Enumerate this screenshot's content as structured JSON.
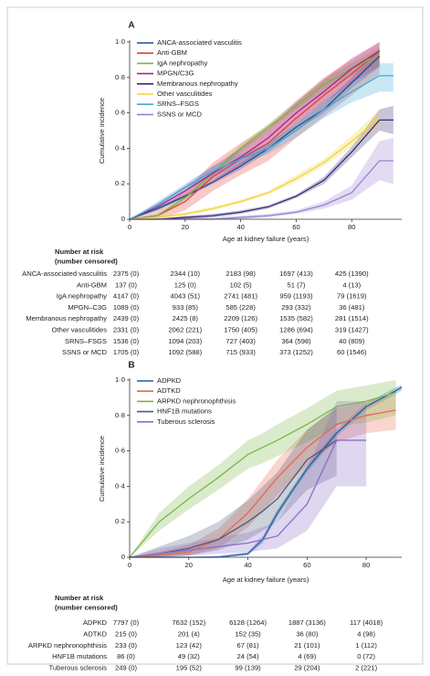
{
  "chart_data": [
    {
      "type": "line",
      "label": "A",
      "ylabel": "Cumulative incidence",
      "xlabel": "Age at kidney failure (years)",
      "x": [
        0,
        10,
        20,
        30,
        40,
        50,
        60,
        70,
        80,
        90,
        95
      ],
      "xlim": [
        0,
        98
      ],
      "xticks": [
        0,
        20,
        40,
        60,
        80
      ],
      "ylim": [
        0,
        1
      ],
      "yticks": [
        0,
        {
          "value": 0.2,
          "label": "0·2"
        },
        {
          "value": 0.4,
          "label": "0·4"
        },
        {
          "value": 0.6,
          "label": "0·6"
        },
        {
          "value": 0.8,
          "label": "0·8"
        },
        {
          "value": 1,
          "label": "1·0"
        }
      ],
      "legend": "upper left",
      "series": [
        {
          "name": "ANCA-associated vasculitis",
          "color": "#1a4f9c",
          "values": [
            0,
            0.06,
            0.13,
            0.21,
            0.3,
            0.4,
            0.52,
            0.62,
            0.77,
            0.92,
            null
          ],
          "lower": [
            0,
            0.05,
            0.12,
            0.2,
            0.28,
            0.38,
            0.5,
            0.6,
            0.74,
            0.86,
            null
          ],
          "upper": [
            0,
            0.07,
            0.14,
            0.22,
            0.32,
            0.42,
            0.54,
            0.65,
            0.8,
            0.96,
            null
          ]
        },
        {
          "name": "Anti-GBM",
          "color": "#e0403a",
          "values": [
            0,
            0.02,
            0.1,
            0.24,
            0.34,
            0.43,
            0.57,
            0.7,
            0.82,
            0.95,
            null
          ],
          "lower": [
            0,
            0,
            0.05,
            0.16,
            0.25,
            0.33,
            0.46,
            0.58,
            0.7,
            0.82,
            null
          ],
          "upper": [
            0,
            0.05,
            0.16,
            0.32,
            0.43,
            0.53,
            0.67,
            0.8,
            0.9,
            1,
            null
          ]
        },
        {
          "name": "IgA nephropathy",
          "color": "#7bb342",
          "values": [
            0,
            0.02,
            0.12,
            0.26,
            0.4,
            0.52,
            0.64,
            0.76,
            0.85,
            0.93,
            null
          ],
          "lower": [
            0,
            0.01,
            0.11,
            0.25,
            0.38,
            0.5,
            0.62,
            0.73,
            0.81,
            0.87,
            null
          ],
          "upper": [
            0,
            0.03,
            0.13,
            0.27,
            0.42,
            0.54,
            0.66,
            0.79,
            0.88,
            0.97,
            null
          ]
        },
        {
          "name": "MPGN/C3G",
          "color": "#a0278f",
          "values": [
            0,
            0.07,
            0.16,
            0.26,
            0.35,
            0.46,
            0.6,
            0.72,
            0.85,
            0.95,
            null
          ],
          "lower": [
            0,
            0.05,
            0.13,
            0.22,
            0.3,
            0.41,
            0.54,
            0.65,
            0.77,
            0.86,
            null
          ],
          "upper": [
            0,
            0.09,
            0.19,
            0.3,
            0.4,
            0.51,
            0.66,
            0.79,
            0.91,
            1,
            null
          ]
        },
        {
          "name": "Membranous nephropathy",
          "color": "#3a2a7a",
          "values": [
            0,
            0,
            0.01,
            0.02,
            0.04,
            0.07,
            0.13,
            0.22,
            0.38,
            0.56,
            0.56
          ],
          "lower": [
            0,
            0,
            0,
            0.01,
            0.03,
            0.06,
            0.12,
            0.2,
            0.35,
            0.5,
            0.48
          ],
          "upper": [
            0,
            0,
            0.02,
            0.03,
            0.05,
            0.08,
            0.14,
            0.24,
            0.41,
            0.62,
            0.64
          ]
        },
        {
          "name": "Other vasculitides",
          "color": "#f2d43a",
          "values": [
            0,
            0.01,
            0.03,
            0.06,
            0.1,
            0.15,
            0.23,
            0.32,
            0.44,
            0.57,
            null
          ],
          "lower": [
            0,
            0,
            0.02,
            0.05,
            0.09,
            0.14,
            0.21,
            0.3,
            0.41,
            0.52,
            null
          ],
          "upper": [
            0,
            0.02,
            0.04,
            0.07,
            0.11,
            0.16,
            0.25,
            0.34,
            0.47,
            0.62,
            null
          ]
        },
        {
          "name": "SRNS–FSGS",
          "color": "#3fa9d6",
          "values": [
            0,
            0.08,
            0.18,
            0.27,
            0.34,
            0.4,
            0.5,
            0.62,
            0.72,
            0.81,
            0.81
          ],
          "lower": [
            0,
            0.06,
            0.16,
            0.24,
            0.31,
            0.37,
            0.46,
            0.57,
            0.66,
            0.72,
            0.72
          ],
          "upper": [
            0,
            0.1,
            0.2,
            0.3,
            0.37,
            0.43,
            0.54,
            0.67,
            0.78,
            0.88,
            0.88
          ]
        },
        {
          "name": "SSNS or MCD",
          "color": "#9a7fd1",
          "values": [
            0,
            0,
            0,
            0,
            0.01,
            0.02,
            0.04,
            0.08,
            0.15,
            0.33,
            0.33
          ],
          "lower": [
            0,
            0,
            0,
            0,
            0,
            0.01,
            0.03,
            0.06,
            0.11,
            0.22,
            0.2
          ],
          "upper": [
            0,
            0,
            0.01,
            0.01,
            0.02,
            0.03,
            0.05,
            0.1,
            0.19,
            0.44,
            0.46
          ]
        }
      ],
      "risk_title": [
        "Number at risk",
        "(number censored)"
      ],
      "risk_rows": [
        {
          "name": "ANCA-associated vasculitis",
          "values": [
            "2375 (0)",
            "2344 (10)",
            "2183 (98)",
            "1697 (413)",
            "425 (1390)"
          ]
        },
        {
          "name": "Anti-GBM",
          "values": [
            "137 (0)",
            "125 (0)",
            "102 (5)",
            "51 (7)",
            "4 (13)"
          ]
        },
        {
          "name": "IgA nephropathy",
          "values": [
            "4147 (0)",
            "4043 (51)",
            "2741 (481)",
            "959 (1193)",
            "79 (1619)"
          ]
        },
        {
          "name": "MPGN–C3G",
          "values": [
            "1089 (0)",
            "933 (85)",
            "585 (228)",
            "293 (332)",
            "36 (481)"
          ]
        },
        {
          "name": "Membranous nephropathy",
          "values": [
            "2439 (0)",
            "2425 (8)",
            "2209 (126)",
            "1535 (582)",
            "281 (1514)"
          ]
        },
        {
          "name": "Other vasculitides",
          "values": [
            "2331 (0)",
            "2062 (221)",
            "1750 (405)",
            "1286 (694)",
            "319 (1427)"
          ]
        },
        {
          "name": "SRNS–FSGS",
          "values": [
            "1536 (0)",
            "1094 (203)",
            "727 (403)",
            "364 (598)",
            "40 (809)"
          ]
        },
        {
          "name": "SSNS or MCD",
          "values": [
            "1705 (0)",
            "1092 (588)",
            "715 (933)",
            "373 (1252)",
            "60 (1546)"
          ]
        }
      ]
    },
    {
      "type": "line",
      "label": "B",
      "ylabel": "Cumulative incidence",
      "xlabel": "Age at kidney failure (years)",
      "x": [
        0,
        10,
        20,
        30,
        40,
        45,
        50,
        60,
        70,
        80,
        90,
        92
      ],
      "xlim": [
        0,
        92
      ],
      "xticks": [
        0,
        20,
        40,
        60,
        80
      ],
      "ylim": [
        0,
        1
      ],
      "yticks": [
        0,
        {
          "value": 0.2,
          "label": "0·2"
        },
        {
          "value": 0.4,
          "label": "0·4"
        },
        {
          "value": 0.6,
          "label": "0·6"
        },
        {
          "value": 0.8,
          "label": "0·8"
        },
        {
          "value": 1,
          "label": "1·0"
        }
      ],
      "legend": "upper left",
      "series": [
        {
          "name": "ADPKD",
          "color": "#1f5fa8",
          "values": [
            0,
            0,
            0,
            0,
            0.02,
            0.1,
            0.25,
            0.5,
            0.7,
            0.85,
            0.94,
            0.96
          ],
          "lower": [
            0,
            0,
            0,
            0,
            0.01,
            0.08,
            0.23,
            0.48,
            0.68,
            0.83,
            0.92,
            0.94
          ],
          "upper": [
            0,
            0,
            0,
            0.01,
            0.03,
            0.12,
            0.27,
            0.52,
            0.72,
            0.87,
            0.96,
            0.97
          ]
        },
        {
          "name": "ADTKD",
          "color": "#e8674a",
          "values": [
            0,
            0.01,
            0.03,
            0.1,
            0.25,
            0.35,
            0.45,
            0.62,
            0.75,
            0.8,
            0.83,
            null
          ],
          "lower": [
            0,
            0,
            0.01,
            0.05,
            0.17,
            0.26,
            0.35,
            0.52,
            0.65,
            0.7,
            0.72,
            null
          ],
          "upper": [
            0,
            0.03,
            0.07,
            0.16,
            0.33,
            0.44,
            0.55,
            0.72,
            0.84,
            0.88,
            0.92,
            null
          ]
        },
        {
          "name": "ARPKD nephronophthisis",
          "color": "#7ab648",
          "values": [
            0,
            0.2,
            0.33,
            0.45,
            0.58,
            0.62,
            0.66,
            0.75,
            0.85,
            0.88,
            0.93,
            null
          ],
          "lower": [
            0,
            0.15,
            0.27,
            0.38,
            0.5,
            0.53,
            0.57,
            0.65,
            0.74,
            0.76,
            0.8,
            null
          ],
          "upper": [
            0,
            0.25,
            0.4,
            0.52,
            0.66,
            0.7,
            0.75,
            0.84,
            0.94,
            0.97,
            1,
            null
          ]
        },
        {
          "name": "HNF1B mutations",
          "color": "#4c5a78",
          "values": [
            0,
            0.02,
            0.05,
            0.1,
            0.2,
            0.26,
            0.33,
            0.55,
            0.66,
            null,
            null,
            null
          ],
          "lower": [
            0,
            0,
            0.01,
            0.04,
            0.1,
            0.15,
            0.2,
            0.38,
            0.46,
            null,
            null,
            null
          ],
          "upper": [
            0,
            0.06,
            0.12,
            0.2,
            0.32,
            0.4,
            0.48,
            0.72,
            0.85,
            null,
            null,
            null
          ]
        },
        {
          "name": "Tuberous sclerosis",
          "color": "#8d6cc4",
          "values": [
            0,
            0.02,
            0.04,
            0.06,
            0.08,
            0.1,
            0.12,
            0.3,
            0.66,
            0.66,
            null,
            null
          ],
          "lower": [
            0,
            0,
            0.01,
            0.02,
            0.03,
            0.04,
            0.05,
            0.15,
            0.4,
            0.4,
            null,
            null
          ],
          "upper": [
            0,
            0.05,
            0.08,
            0.11,
            0.14,
            0.17,
            0.2,
            0.5,
            0.88,
            0.88,
            null,
            null
          ]
        }
      ],
      "risk_title": [
        "Number at risk",
        "(number censored)"
      ],
      "risk_rows": [
        {
          "name": "ADPKD",
          "values": [
            "7797 (0)",
            "7632 (152)",
            "6128 (1264)",
            "1887 (3136)",
            "117 (4018)"
          ]
        },
        {
          "name": "ADTKD",
          "values": [
            "215 (0)",
            "201 (4)",
            "152 (35)",
            "36 (80)",
            "4 (98)"
          ]
        },
        {
          "name": "ARPKD nephronophthisis",
          "values": [
            "233 (0)",
            "123 (42)",
            "67 (81)",
            "21 (101)",
            "1 (112)"
          ]
        },
        {
          "name": "HNF1B mutations",
          "values": [
            "86 (0)",
            "49 (32)",
            "24 (54)",
            "4 (69)",
            "0 (72)"
          ]
        },
        {
          "name": "Tuberous sclerosis",
          "values": [
            "249 (0)",
            "195 (52)",
            "99 (139)",
            "29 (204)",
            "2 (221)"
          ]
        }
      ]
    }
  ]
}
